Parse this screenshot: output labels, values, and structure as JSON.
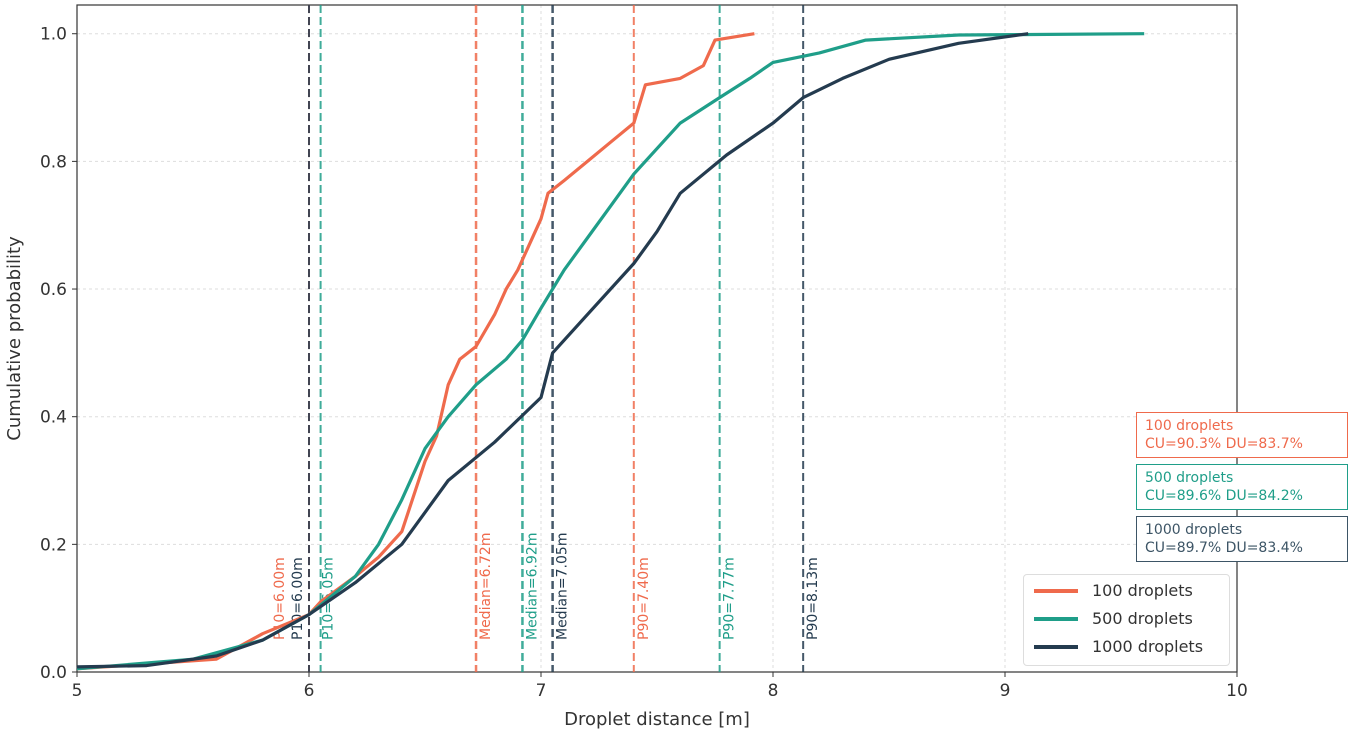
{
  "chart_data": {
    "type": "line",
    "title": "",
    "xlabel": "Droplet distance [m]",
    "ylabel": "Cumulative probability",
    "xlim": [
      5,
      10
    ],
    "ylim": [
      0,
      1.045
    ],
    "xticks": [
      "5",
      "6",
      "7",
      "8",
      "9",
      "10"
    ],
    "yticks": [
      "0.0",
      "0.2",
      "0.4",
      "0.6",
      "0.8",
      "1.0"
    ],
    "grid": true,
    "legend_position": "bottom-right",
    "series": [
      {
        "name": "100 droplets",
        "color": "#ef6a4c",
        "points": [
          [
            5,
            0.005
          ],
          [
            5.6,
            0.02
          ],
          [
            5.8,
            0.06
          ],
          [
            6,
            0.09
          ],
          [
            6.05,
            0.11
          ],
          [
            6.2,
            0.15
          ],
          [
            6.3,
            0.18
          ],
          [
            6.4,
            0.22
          ],
          [
            6.5,
            0.33
          ],
          [
            6.55,
            0.37
          ],
          [
            6.6,
            0.45
          ],
          [
            6.65,
            0.49
          ],
          [
            6.72,
            0.51
          ],
          [
            6.8,
            0.56
          ],
          [
            6.85,
            0.6
          ],
          [
            6.9,
            0.63
          ],
          [
            6.95,
            0.67
          ],
          [
            7.0,
            0.71
          ],
          [
            7.03,
            0.75
          ],
          [
            7.1,
            0.77
          ],
          [
            7.2,
            0.8
          ],
          [
            7.3,
            0.83
          ],
          [
            7.4,
            0.86
          ],
          [
            7.45,
            0.92
          ],
          [
            7.6,
            0.93
          ],
          [
            7.7,
            0.95
          ],
          [
            7.75,
            0.99
          ],
          [
            7.92,
            1.0
          ]
        ],
        "markers": [
          {
            "label": "P10=6.00m",
            "x": 6.0
          },
          {
            "label": "Median=6.72m",
            "x": 6.72
          },
          {
            "label": "P90=7.40m",
            "x": 7.4
          }
        ]
      },
      {
        "name": "500 droplets",
        "color": "#1f9e89",
        "points": [
          [
            5,
            0.005
          ],
          [
            5.5,
            0.02
          ],
          [
            5.8,
            0.05
          ],
          [
            6,
            0.09
          ],
          [
            6.2,
            0.15
          ],
          [
            6.3,
            0.2
          ],
          [
            6.4,
            0.27
          ],
          [
            6.5,
            0.35
          ],
          [
            6.6,
            0.4
          ],
          [
            6.72,
            0.45
          ],
          [
            6.85,
            0.49
          ],
          [
            6.92,
            0.52
          ],
          [
            7.0,
            0.57
          ],
          [
            7.1,
            0.63
          ],
          [
            7.2,
            0.68
          ],
          [
            7.3,
            0.73
          ],
          [
            7.4,
            0.78
          ],
          [
            7.5,
            0.82
          ],
          [
            7.6,
            0.86
          ],
          [
            7.77,
            0.9
          ],
          [
            7.9,
            0.93
          ],
          [
            8.0,
            0.955
          ],
          [
            8.2,
            0.97
          ],
          [
            8.4,
            0.99
          ],
          [
            8.8,
            0.998
          ],
          [
            9.6,
            1.0
          ]
        ],
        "markers": [
          {
            "label": "P10=6.05m",
            "x": 6.05
          },
          {
            "label": "Median=6.92m",
            "x": 6.92
          },
          {
            "label": "P90=7.77m",
            "x": 7.77
          }
        ]
      },
      {
        "name": "1000 droplets",
        "color": "#243b4f",
        "points": [
          [
            5,
            0.008
          ],
          [
            5.3,
            0.01
          ],
          [
            5.6,
            0.025
          ],
          [
            5.8,
            0.05
          ],
          [
            6,
            0.09
          ],
          [
            6.2,
            0.14
          ],
          [
            6.4,
            0.2
          ],
          [
            6.5,
            0.25
          ],
          [
            6.6,
            0.3
          ],
          [
            6.8,
            0.36
          ],
          [
            7,
            0.43
          ],
          [
            7.05,
            0.5
          ],
          [
            7.2,
            0.56
          ],
          [
            7.4,
            0.64
          ],
          [
            7.5,
            0.69
          ],
          [
            7.6,
            0.75
          ],
          [
            7.8,
            0.81
          ],
          [
            8.0,
            0.86
          ],
          [
            8.13,
            0.9
          ],
          [
            8.3,
            0.93
          ],
          [
            8.5,
            0.96
          ],
          [
            8.8,
            0.985
          ],
          [
            9.1,
            1.0
          ]
        ],
        "markers": [
          {
            "label": "P10=6.00m",
            "x": 6.0
          },
          {
            "label": "Median=7.05m",
            "x": 7.05
          },
          {
            "label": "P90=8.13m",
            "x": 8.13
          }
        ]
      }
    ],
    "annotations": [
      {
        "title": "100 droplets",
        "stats": "CU=90.3%  DU=83.7%",
        "color": "#ef6a4c"
      },
      {
        "title": "500 droplets",
        "stats": "CU=89.6%  DU=84.2%",
        "color": "#1f9e89"
      },
      {
        "title": "1000 droplets",
        "stats": "CU=89.7%  DU=83.4%",
        "color": "#3d5566"
      }
    ]
  }
}
